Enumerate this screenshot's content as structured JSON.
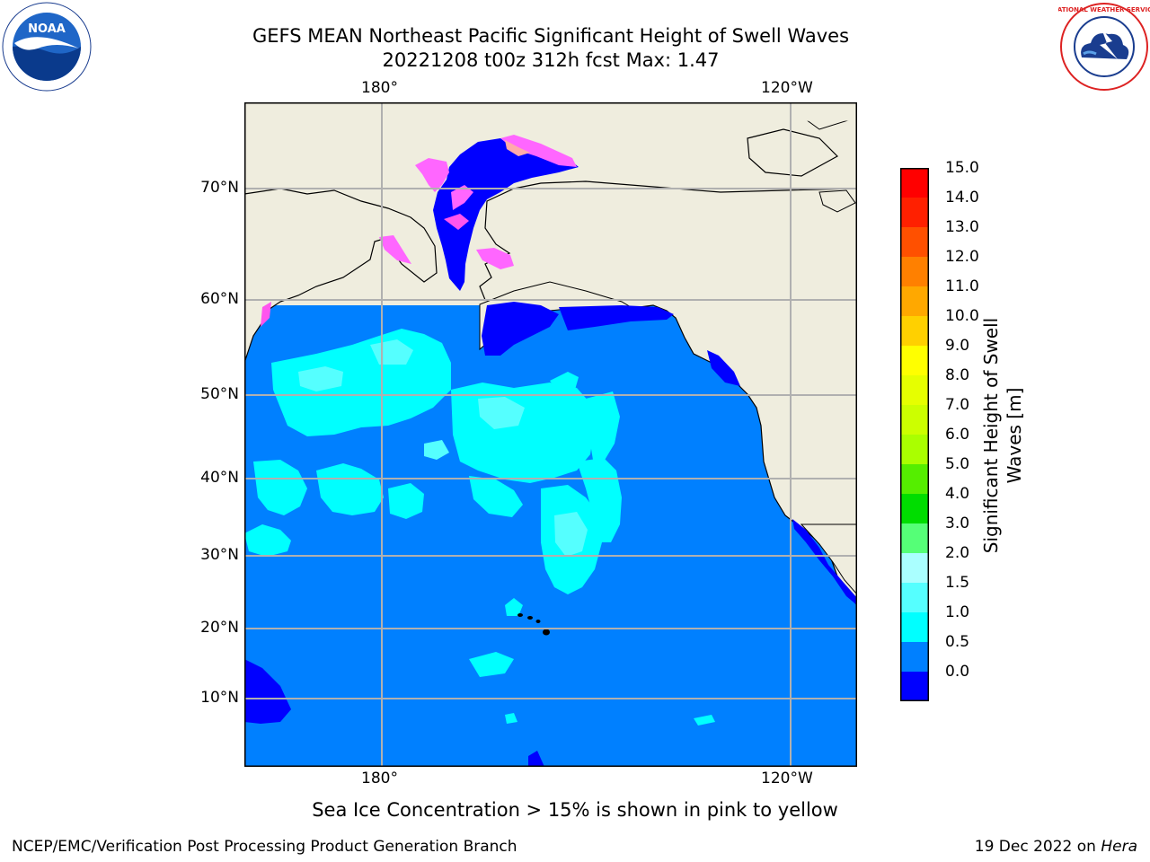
{
  "header": {
    "title_line1": "GEFS MEAN Northeast Pacific Significant Height of Swell Waves",
    "title_line2": "20221208 t00z 312h fcst   Max: 1.47"
  },
  "logos": {
    "left": "noaa-logo",
    "right": "national-weather-service-logo",
    "left_text": "NOAA",
    "right_ring_text": "NATIONAL WEATHER SERVICE"
  },
  "map": {
    "projection": "cylindrical",
    "lat_ticks": [
      "70°N",
      "60°N",
      "50°N",
      "40°N",
      "30°N",
      "20°N",
      "10°N"
    ],
    "lon_ticks_top": [
      "180°",
      "120°W"
    ],
    "lon_ticks_bottom": [
      "180°",
      "120°W"
    ],
    "land_color": "#efedde",
    "ocean_base_color": "#0080ff",
    "gridlines": true
  },
  "colorbar": {
    "label": "Significant Height of Swell Waves [m]",
    "ticks": [
      "15.0",
      "14.0",
      "13.0",
      "12.0",
      "11.0",
      "10.0",
      "9.0",
      "8.0",
      "7.0",
      "6.0",
      "5.0",
      "4.0",
      "3.0",
      "2.0",
      "1.5",
      "1.0",
      "0.5",
      "0.0"
    ],
    "colors": [
      "#ff0000",
      "#ff2000",
      "#ff5000",
      "#ff8000",
      "#ffa800",
      "#ffd000",
      "#ffff00",
      "#e6ff00",
      "#ccff00",
      "#aaff00",
      "#55ee00",
      "#00dd00",
      "#55ff77",
      "#aaffff",
      "#55ffff",
      "#00ffff",
      "#0080ff",
      "#0000ff"
    ]
  },
  "note": "Sea Ice Concentration > 15% is shown in pink to yellow",
  "footer": {
    "left": "NCEP/EMC/Verification Post Processing Product Generation Branch",
    "right_prefix": "19 Dec 2022 on ",
    "right_host": "Hera"
  }
}
